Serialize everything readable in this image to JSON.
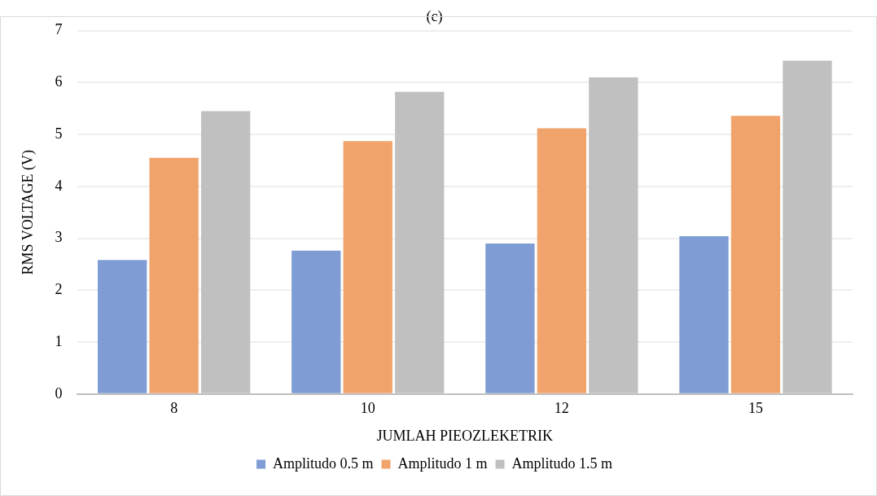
{
  "chart_data": {
    "type": "bar",
    "title": "(c)",
    "xlabel": "JUMLAH PIEOZLEKETRIK",
    "ylabel": "RMS VOLTAGE (V)",
    "categories": [
      "8",
      "10",
      "12",
      "15"
    ],
    "series": [
      {
        "name": "Amplitudo 0.5 m",
        "color": "#7f9dd4",
        "values": [
          2.58,
          2.76,
          2.9,
          3.04
        ]
      },
      {
        "name": "Amplitudo 1 m",
        "color": "#f0a46c",
        "values": [
          4.55,
          4.87,
          5.12,
          5.36
        ]
      },
      {
        "name": "Amplitudo 1.5 m",
        "color": "#c0c0c0",
        "values": [
          5.45,
          5.82,
          6.1,
          6.42
        ]
      }
    ],
    "ylim": [
      0,
      7
    ],
    "yticks": [
      0,
      1,
      2,
      3,
      4,
      5,
      6,
      7
    ],
    "grid": "y",
    "legend": "bottom"
  }
}
